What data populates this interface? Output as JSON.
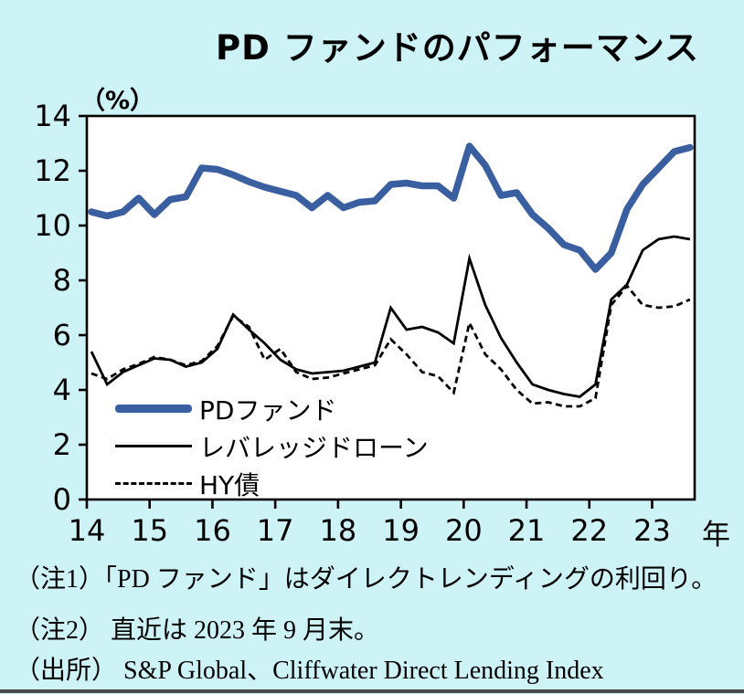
{
  "page": {
    "title": "PD ファンドのパフォーマンス",
    "background_color": "#cdf3f7"
  },
  "notes": {
    "note1": "（注1）「PD ファンド」はダイレクトレンディングの利回り。",
    "note2": "（注2） 直近は 2023 年 9 月末。",
    "source": "（出所） S&P Global、Cliffwater Direct Lending Index"
  },
  "chart_data": {
    "type": "line",
    "title": "PD ファンドのパフォーマンス",
    "y_unit_label": "（%）",
    "x_unit_label": "年",
    "ylim": [
      0,
      14
    ],
    "y_ticks": [
      0,
      2,
      4,
      6,
      8,
      10,
      12,
      14
    ],
    "x_tick_labels": [
      "14",
      "15",
      "16",
      "17",
      "18",
      "19",
      "20",
      "21",
      "22",
      "23"
    ],
    "grid": false,
    "legend_position": "inside-bottom-left",
    "x_frequency": "quarterly",
    "x": [
      "2014Q1",
      "2014Q2",
      "2014Q3",
      "2014Q4",
      "2015Q1",
      "2015Q2",
      "2015Q3",
      "2015Q4",
      "2016Q1",
      "2016Q2",
      "2016Q3",
      "2016Q4",
      "2017Q1",
      "2017Q2",
      "2017Q3",
      "2017Q4",
      "2018Q1",
      "2018Q2",
      "2018Q3",
      "2018Q4",
      "2019Q1",
      "2019Q2",
      "2019Q3",
      "2019Q4",
      "2020Q1",
      "2020Q2",
      "2020Q3",
      "2020Q4",
      "2021Q1",
      "2021Q2",
      "2021Q3",
      "2021Q4",
      "2022Q1",
      "2022Q2",
      "2022Q3",
      "2022Q4",
      "2023Q1",
      "2023Q2",
      "2023Q3"
    ],
    "series": [
      {
        "name": "PDファンド",
        "style": "thick-blue",
        "color": "#3a5fa0",
        "values": [
          10.5,
          10.35,
          10.5,
          11.0,
          10.4,
          10.95,
          11.05,
          12.1,
          12.05,
          11.85,
          11.6,
          11.4,
          11.25,
          11.1,
          10.65,
          11.1,
          10.65,
          10.85,
          10.9,
          11.5,
          11.55,
          11.45,
          11.45,
          11.0,
          12.9,
          12.2,
          11.1,
          11.2,
          10.4,
          9.9,
          9.3,
          9.1,
          8.4,
          9.0,
          10.6,
          11.5,
          12.1,
          12.7,
          12.85
        ]
      },
      {
        "name": "レバレッジドローン",
        "style": "thin-solid",
        "color": "#000000",
        "values": [
          5.4,
          4.2,
          4.65,
          4.9,
          5.15,
          5.1,
          4.85,
          5.0,
          5.5,
          6.75,
          6.2,
          5.7,
          5.1,
          4.75,
          4.6,
          4.65,
          4.7,
          4.85,
          5.0,
          7.0,
          6.2,
          6.3,
          6.1,
          5.7,
          8.8,
          7.1,
          5.9,
          5.0,
          4.2,
          4.0,
          3.85,
          3.75,
          4.2,
          7.3,
          7.85,
          9.1,
          9.5,
          9.6,
          9.5
        ]
      },
      {
        "name": "HY債",
        "style": "dashed",
        "color": "#000000",
        "values": [
          4.6,
          4.4,
          4.75,
          4.95,
          5.2,
          5.1,
          4.9,
          5.05,
          5.6,
          6.7,
          6.3,
          5.1,
          5.5,
          4.65,
          4.4,
          4.45,
          4.6,
          4.75,
          4.9,
          5.85,
          5.3,
          4.65,
          4.5,
          3.9,
          6.45,
          5.3,
          4.75,
          4.0,
          3.5,
          3.55,
          3.4,
          3.4,
          3.7,
          7.1,
          7.8,
          7.1,
          7.0,
          7.05,
          7.3
        ]
      }
    ]
  }
}
